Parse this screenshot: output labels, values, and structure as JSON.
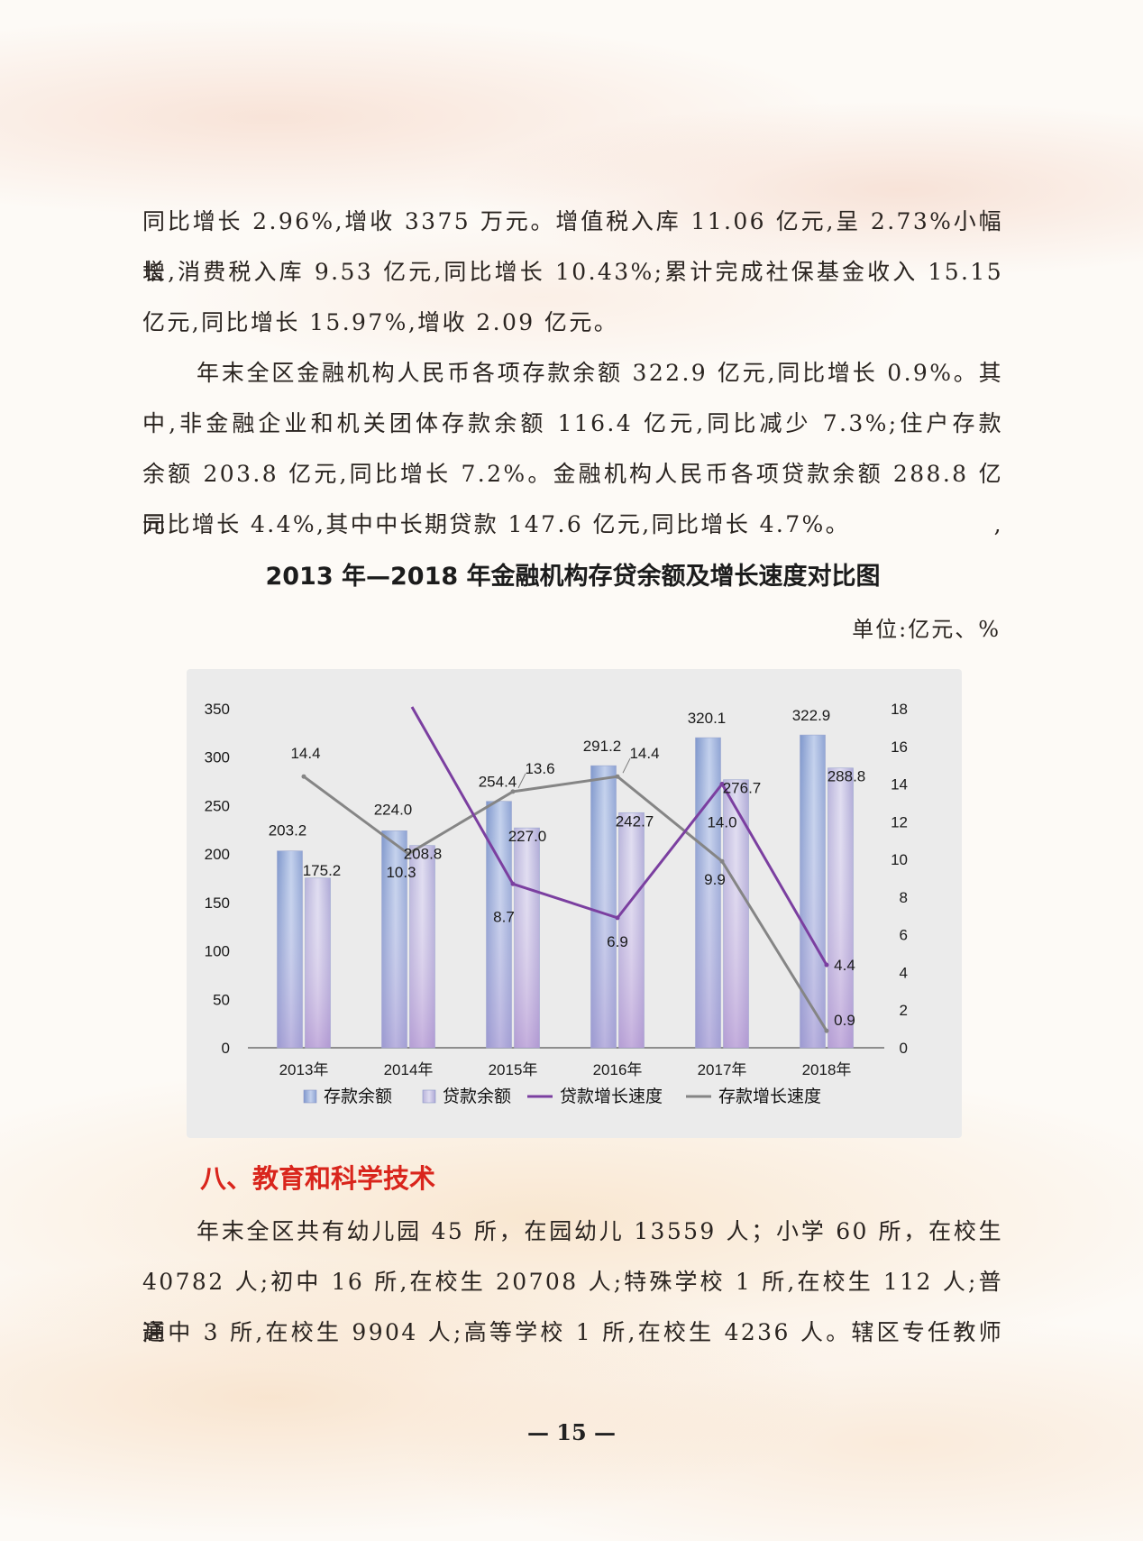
{
  "paragraphs_top": [
    {
      "lines": [
        "同比增长 2.96%,增收 3375 万元。增值税入库 11.06 亿元,呈 2.73%小幅增",
        "长,消费税入库 9.53 亿元,同比增长 10.43%;累计完成社保基金收入 15.15",
        "亿元,同比增长 15.97%,增收 2.09 亿元。"
      ]
    },
    {
      "lines": [
        "年末全区金融机构人民币各项存款余额 322.9 亿元,同比增长 0.9%。其",
        "中,非金融企业和机关团体存款余额 116.4 亿元,同比减少 7.3%;住户存款",
        "余额 203.8 亿元,同比增长 7.2%。金融机构人民币各项贷款余额 288.8 亿元,",
        "同比增长 4.4%,其中中长期贷款 147.6 亿元,同比增长 4.7%。"
      ]
    }
  ],
  "chart_title": "2013 年—2018 年金融机构存贷余额及增长速度对比图",
  "chart_unit": "单位:亿元、%",
  "chart_data": {
    "type": "bar",
    "categories": [
      "2013年",
      "2014年",
      "2015年",
      "2016年",
      "2017年",
      "2018年"
    ],
    "series": [
      {
        "name": "存款余额",
        "kind": "bar",
        "axis": "left",
        "values": [
          203.2,
          224.0,
          254.4,
          291.2,
          320.1,
          322.9
        ],
        "labels": [
          "203.2",
          "224.0",
          "254.4",
          "291.2",
          "320.1",
          "322.9"
        ],
        "color": "#8fa6d4"
      },
      {
        "name": "贷款余额",
        "kind": "bar",
        "axis": "left",
        "values": [
          175.2,
          208.8,
          227.0,
          242.7,
          276.7,
          288.8
        ],
        "labels": [
          "175.2",
          "208.8",
          "227.0",
          "242.7",
          "276.7",
          "288.8"
        ],
        "color": "#b3aed6"
      },
      {
        "name": "贷款增长速度",
        "kind": "line",
        "axis": "right",
        "values": [
          null,
          null,
          8.7,
          6.9,
          14.0,
          4.4
        ],
        "labels": [
          "",
          "",
          "8.7",
          "6.9",
          "14.0",
          "4.4"
        ],
        "color": "#7b3fa0"
      },
      {
        "name": "存款增长速度",
        "kind": "line",
        "axis": "right",
        "values": [
          14.4,
          10.3,
          13.6,
          14.4,
          9.9,
          0.9
        ],
        "labels": [
          "14.4",
          "10.3",
          "13.6",
          "14.4",
          "9.9",
          "0.9"
        ],
        "color": "#858585"
      }
    ],
    "y_left": {
      "min": 0,
      "max": 350,
      "ticks": [
        "0",
        "50",
        "100",
        "150",
        "200",
        "250",
        "300",
        "350"
      ]
    },
    "y_right": {
      "min": 0,
      "max": 18,
      "ticks": [
        "0",
        "2",
        "4",
        "6",
        "8",
        "10",
        "12",
        "14",
        "16",
        "18"
      ]
    },
    "grid": false,
    "legend_position": "bottom"
  },
  "section_heading": "八、教育和科学技术",
  "paragraphs_bottom": [
    {
      "lines": [
        "年末全区共有幼儿园 45 所，在园幼儿 13559 人；小学 60 所，在校生",
        "40782 人;初中 16 所,在校生 20708 人;特殊学校 1 所,在校生 112 人;普通",
        "高中 3 所,在校生 9904 人;高等学校 1 所,在校生 4236 人。辖区专任教师"
      ]
    }
  ],
  "page_number": "— 15 —"
}
